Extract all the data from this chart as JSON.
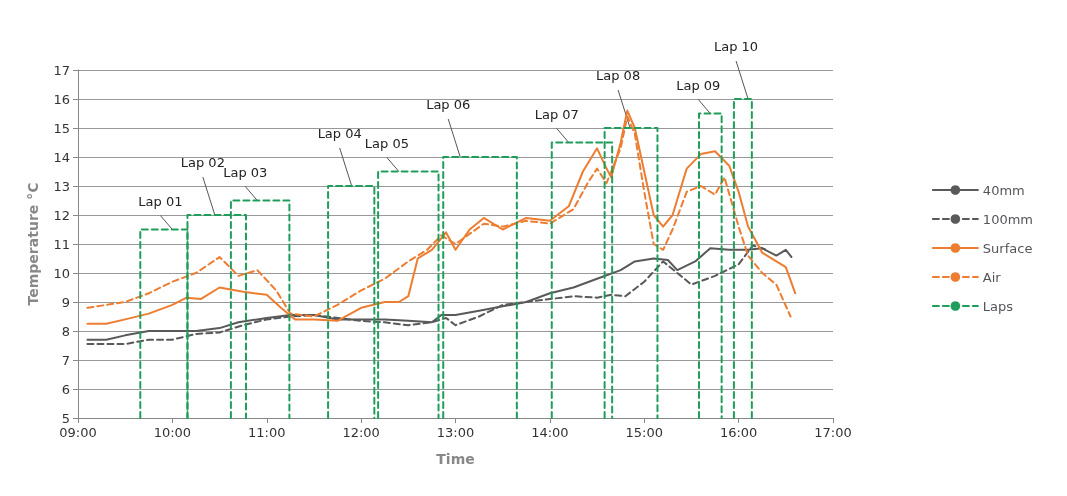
{
  "chart_data": {
    "type": "line",
    "xlabel": "Time",
    "ylabel": "Temperature °C",
    "xlim": [
      9,
      17
    ],
    "ylim": [
      5,
      17
    ],
    "xticks": [
      {
        "value": 9,
        "label": "09:00"
      },
      {
        "value": 10,
        "label": "10:00"
      },
      {
        "value": 11,
        "label": "11:00"
      },
      {
        "value": 12,
        "label": "12:00"
      },
      {
        "value": 13,
        "label": "13:00"
      },
      {
        "value": 14,
        "label": "14:00"
      },
      {
        "value": 15,
        "label": "15:00"
      },
      {
        "value": 16,
        "label": "16:00"
      },
      {
        "value": 17,
        "label": "17:00"
      }
    ],
    "yticks": [
      5,
      6,
      7,
      8,
      9,
      10,
      11,
      12,
      13,
      14,
      15,
      16,
      17
    ],
    "grid": "y",
    "legend": "right",
    "marker": "none",
    "series": [
      {
        "name": "40mm",
        "color": "#595959",
        "line_style": "solid",
        "x": [
          9.1,
          9.3,
          9.5,
          9.75,
          10.0,
          10.25,
          10.5,
          10.7,
          11.0,
          11.25,
          11.5,
          11.75,
          12.0,
          12.25,
          12.5,
          12.75,
          12.85,
          13.0,
          13.25,
          13.5,
          13.75,
          14.0,
          14.25,
          14.5,
          14.75,
          14.9,
          15.1,
          15.25,
          15.35,
          15.54,
          15.7,
          15.9,
          16.1,
          16.25,
          16.4,
          16.5,
          16.56
        ],
        "values": [
          7.7,
          7.7,
          7.85,
          8.0,
          8.0,
          8.0,
          8.1,
          8.3,
          8.45,
          8.55,
          8.55,
          8.4,
          8.4,
          8.4,
          8.35,
          8.3,
          8.55,
          8.55,
          8.7,
          8.85,
          9.0,
          9.3,
          9.5,
          9.8,
          10.1,
          10.4,
          10.5,
          10.45,
          10.1,
          10.4,
          10.85,
          10.8,
          10.8,
          10.85,
          10.6,
          10.8,
          10.55
        ]
      },
      {
        "name": "100mm",
        "color": "#595959",
        "line_style": "dashed",
        "x": [
          9.1,
          9.5,
          9.75,
          10.0,
          10.25,
          10.5,
          10.75,
          11.0,
          11.25,
          11.5,
          12.0,
          12.25,
          12.5,
          12.75,
          12.9,
          13.0,
          13.25,
          13.5,
          13.75,
          14.0,
          14.25,
          14.5,
          14.65,
          14.8,
          15.0,
          15.2,
          15.35,
          15.5,
          15.75,
          16.0,
          16.15,
          16.3
        ],
        "values": [
          7.55,
          7.55,
          7.7,
          7.7,
          7.9,
          7.95,
          8.2,
          8.4,
          8.5,
          8.55,
          8.35,
          8.3,
          8.2,
          8.3,
          8.45,
          8.2,
          8.5,
          8.9,
          9.0,
          9.1,
          9.2,
          9.15,
          9.25,
          9.2,
          9.7,
          10.4,
          10.0,
          9.6,
          9.9,
          10.3,
          10.95,
          10.8
        ]
      },
      {
        "name": "Surface",
        "color": "#ed7d31",
        "line_style": "solid",
        "x": [
          9.1,
          9.3,
          9.5,
          9.75,
          10.0,
          10.15,
          10.3,
          10.5,
          10.75,
          11.0,
          11.15,
          11.3,
          11.5,
          11.75,
          12.0,
          12.25,
          12.4,
          12.5,
          12.6,
          12.75,
          12.9,
          13.0,
          13.15,
          13.3,
          13.5,
          13.75,
          14.0,
          14.2,
          14.35,
          14.5,
          14.6,
          14.65,
          14.75,
          14.82,
          14.9,
          15.0,
          15.1,
          15.2,
          15.3,
          15.45,
          15.6,
          15.75,
          15.9,
          16.0,
          16.1,
          16.25,
          16.4,
          16.5,
          16.6
        ],
        "values": [
          8.25,
          8.25,
          8.4,
          8.6,
          8.9,
          9.15,
          9.1,
          9.5,
          9.35,
          9.25,
          8.8,
          8.4,
          8.4,
          8.35,
          8.8,
          9.0,
          9.0,
          9.2,
          10.5,
          10.8,
          11.4,
          10.8,
          11.5,
          11.9,
          11.5,
          11.9,
          11.8,
          12.3,
          13.5,
          14.3,
          13.6,
          13.3,
          14.5,
          15.6,
          15.0,
          13.5,
          12.0,
          11.6,
          12.0,
          13.6,
          14.1,
          14.2,
          13.7,
          12.8,
          11.6,
          10.7,
          10.4,
          10.2,
          9.3
        ]
      },
      {
        "name": "Air",
        "color": "#ed7d31",
        "line_style": "dashed",
        "x": [
          9.1,
          9.5,
          9.75,
          10.0,
          10.25,
          10.5,
          10.7,
          10.9,
          11.1,
          11.25,
          11.5,
          11.75,
          12.0,
          12.25,
          12.5,
          12.7,
          12.85,
          13.0,
          13.3,
          13.5,
          13.75,
          14.0,
          14.25,
          14.4,
          14.5,
          14.6,
          14.75,
          14.82,
          14.9,
          15.0,
          15.1,
          15.2,
          15.3,
          15.45,
          15.6,
          15.75,
          15.85,
          16.0,
          16.1,
          16.25,
          16.4,
          16.55
        ],
        "values": [
          8.8,
          9.0,
          9.3,
          9.7,
          10.0,
          10.55,
          9.9,
          10.1,
          9.4,
          8.6,
          8.5,
          8.9,
          9.4,
          9.8,
          10.4,
          10.8,
          11.3,
          11.0,
          11.7,
          11.6,
          11.8,
          11.7,
          12.2,
          13.1,
          13.6,
          13.1,
          14.3,
          15.4,
          14.8,
          12.8,
          11.0,
          10.8,
          11.5,
          12.8,
          13.0,
          12.7,
          13.3,
          11.6,
          10.6,
          10.0,
          9.6,
          8.5
        ]
      },
      {
        "name": "Laps",
        "color": "#1e9e5a",
        "line_style": "dashed",
        "x": [
          9.66,
          9.66,
          10.16,
          10.16
        ],
        "values": [
          5,
          11.5,
          11.5,
          5
        ]
      },
      {
        "color": "#1e9e5a",
        "line_style": "dashed",
        "x": [
          10.16,
          10.16,
          10.78,
          10.78
        ],
        "values": [
          5,
          12,
          12,
          5
        ]
      },
      {
        "color": "#1e9e5a",
        "line_style": "dashed",
        "x": [
          10.62,
          10.62,
          11.24,
          11.24
        ],
        "values": [
          5,
          12.5,
          12.5,
          5
        ]
      },
      {
        "color": "#1e9e5a",
        "line_style": "dashed",
        "x": [
          11.65,
          11.65,
          12.14,
          12.14
        ],
        "values": [
          5,
          13,
          13,
          5
        ]
      },
      {
        "color": "#1e9e5a",
        "line_style": "dashed",
        "x": [
          12.18,
          12.18,
          12.82,
          12.82
        ],
        "values": [
          5,
          13.5,
          13.5,
          5
        ]
      },
      {
        "color": "#1e9e5a",
        "line_style": "dashed",
        "x": [
          12.87,
          12.87,
          13.65,
          13.65
        ],
        "values": [
          5,
          14,
          14,
          5
        ]
      },
      {
        "color": "#1e9e5a",
        "line_style": "dashed",
        "x": [
          14.02,
          14.02,
          14.66,
          14.66
        ],
        "values": [
          5,
          14.5,
          14.5,
          5
        ]
      },
      {
        "color": "#1e9e5a",
        "line_style": "dashed",
        "x": [
          14.58,
          14.58,
          15.14,
          15.14
        ],
        "values": [
          5,
          15,
          15,
          5
        ]
      },
      {
        "color": "#1e9e5a",
        "line_style": "dashed",
        "x": [
          15.58,
          15.58,
          15.82,
          15.82
        ],
        "values": [
          5,
          15.5,
          15.5,
          5
        ]
      },
      {
        "color": "#1e9e5a",
        "line_style": "dashed",
        "x": [
          15.95,
          15.95,
          16.14,
          16.14
        ],
        "values": [
          5,
          16,
          16,
          5
        ]
      }
    ],
    "annotations": [
      {
        "text": "Lap 01",
        "x": 10.0,
        "y": 11.5
      },
      {
        "text": "Lap 02",
        "x": 10.45,
        "y": 12
      },
      {
        "text": "Lap 03",
        "x": 10.9,
        "y": 12.5
      },
      {
        "text": "Lap 04",
        "x": 11.9,
        "y": 13
      },
      {
        "text": "Lap 05",
        "x": 12.4,
        "y": 13.5
      },
      {
        "text": "Lap 06",
        "x": 13.05,
        "y": 14
      },
      {
        "text": "Lap 07",
        "x": 14.2,
        "y": 14.5
      },
      {
        "text": "Lap 08",
        "x": 14.85,
        "y": 15
      },
      {
        "text": "Lap 09",
        "x": 15.7,
        "y": 15.5
      },
      {
        "text": "Lap 10",
        "x": 16.1,
        "y": 16
      }
    ]
  }
}
